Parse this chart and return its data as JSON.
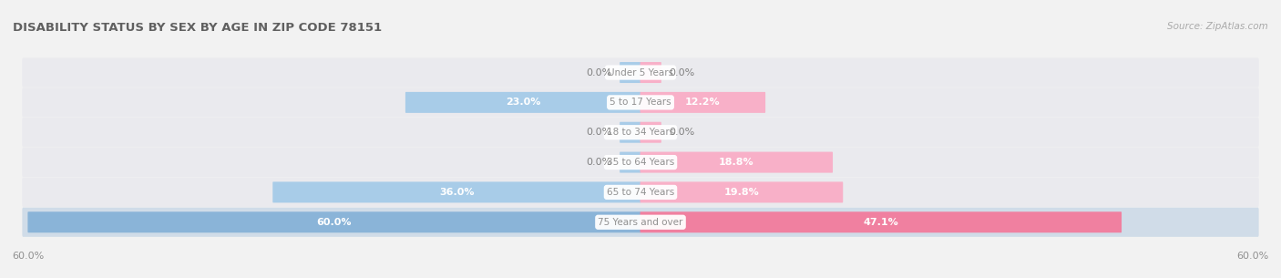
{
  "title": "DISABILITY STATUS BY SEX BY AGE IN ZIP CODE 78151",
  "source": "Source: ZipAtlas.com",
  "categories": [
    "Under 5 Years",
    "5 to 17 Years",
    "18 to 34 Years",
    "35 to 64 Years",
    "65 to 74 Years",
    "75 Years and over"
  ],
  "male_values": [
    0.0,
    23.0,
    0.0,
    0.0,
    36.0,
    60.0
  ],
  "female_values": [
    0.0,
    12.2,
    0.0,
    18.8,
    19.8,
    47.1
  ],
  "male_color": "#8ab4d8",
  "female_color": "#f080a0",
  "male_color_light": "#a8cce8",
  "female_color_light": "#f8b0c8",
  "axis_max": 60.0,
  "bg_color": "#f2f2f2",
  "row_bg_color": "#e8e8ee",
  "row_bg_color_last": "#c8d8e8",
  "title_color": "#606060",
  "value_color_outside": "#808080",
  "value_color_inside": "#ffffff",
  "category_label_color": "#909090",
  "tick_label_color": "#909090",
  "bar_height": 0.62,
  "title_fontsize": 9.5,
  "bar_fontsize": 8.0,
  "cat_fontsize": 7.5,
  "tick_fontsize": 8.0,
  "legend_fontsize": 8.0,
  "source_fontsize": 7.5
}
